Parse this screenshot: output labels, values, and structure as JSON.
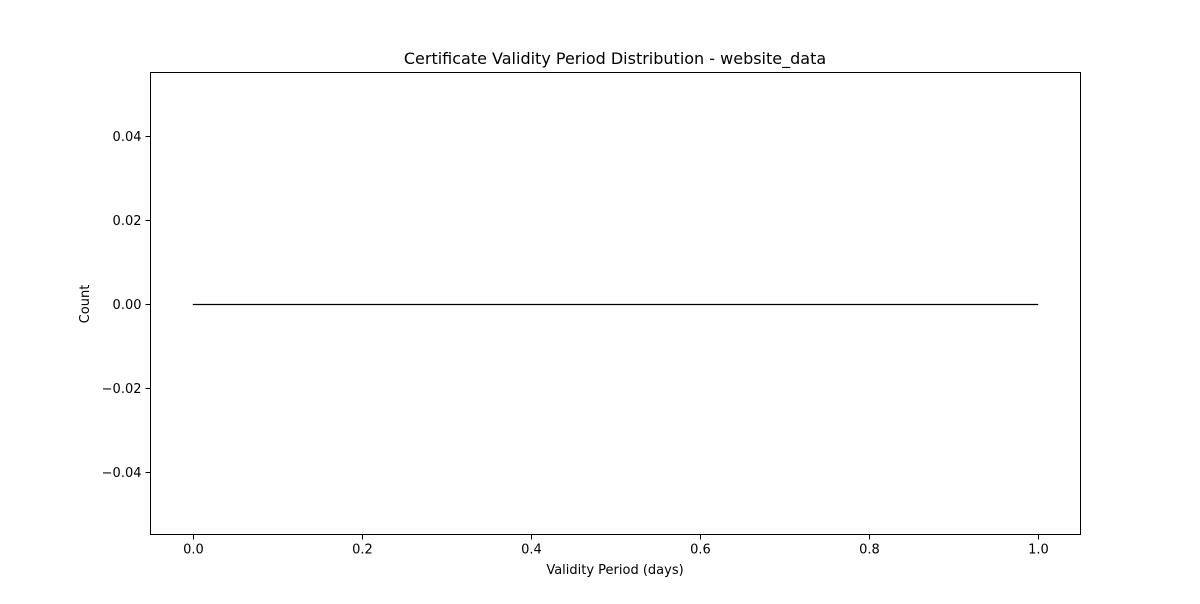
{
  "chart_data": {
    "type": "histogram",
    "title": "Certificate Validity Period Distribution - website_data",
    "xlabel": "Validity Period (days)",
    "ylabel": "Count",
    "xlim": [
      -0.05,
      1.05
    ],
    "ylim": [
      -0.055,
      0.055
    ],
    "x_ticks": [
      0.0,
      0.2,
      0.4,
      0.6,
      0.8,
      1.0
    ],
    "x_tick_labels": [
      "0.0",
      "0.2",
      "0.4",
      "0.6",
      "0.8",
      "1.0"
    ],
    "y_ticks": [
      0.04,
      0.02,
      0.0,
      -0.02,
      -0.04
    ],
    "y_tick_labels": [
      "0.04",
      "0.02",
      "0.00",
      "−0.02",
      "−0.04"
    ],
    "series": [
      {
        "x": [
          0.0,
          1.0
        ],
        "y": [
          0.0,
          0.0
        ]
      }
    ],
    "grid": false,
    "legend": "none",
    "line_color": "#000000"
  }
}
